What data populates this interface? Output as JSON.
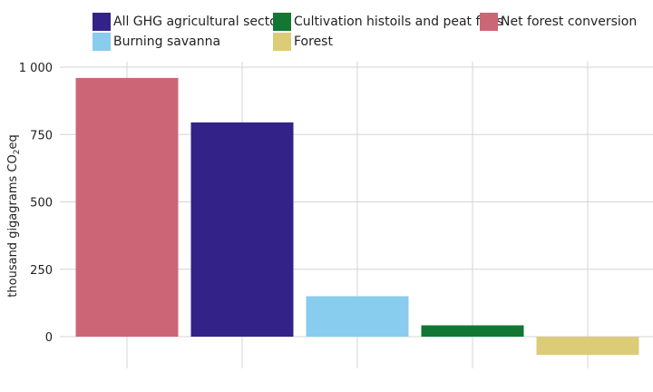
{
  "chart_data": {
    "type": "bar",
    "title": "",
    "xlabel": "",
    "ylabel_parts": [
      "thousand gigagrams CO",
      "2",
      "eq"
    ],
    "ylim": [
      -60,
      1000
    ],
    "yticks": [
      0,
      250,
      500,
      750,
      1000
    ],
    "ytick_labels": [
      "0",
      "250",
      "500",
      "750",
      "1 000"
    ],
    "grid": true,
    "legend_position": "top",
    "categories": [
      "Net forest conversion",
      "All GHG agricultural sectors",
      "Burning savanna",
      "Cultivation histoils and peat fires",
      "Forest"
    ],
    "values": [
      960,
      795,
      150,
      42,
      -68
    ],
    "colors": [
      "#cc6677",
      "#332288",
      "#88ccee",
      "#117733",
      "#ddcc77"
    ]
  },
  "legend": {
    "items": [
      {
        "label": "All GHG agricultural sectors",
        "color": "#332288"
      },
      {
        "label": "Cultivation histoils and peat fires",
        "color": "#117733"
      },
      {
        "label": "Net forest conversion",
        "color": "#cc6677"
      },
      {
        "label": "Burning savanna",
        "color": "#88ccee"
      },
      {
        "label": "Forest",
        "color": "#ddcc77"
      }
    ]
  }
}
